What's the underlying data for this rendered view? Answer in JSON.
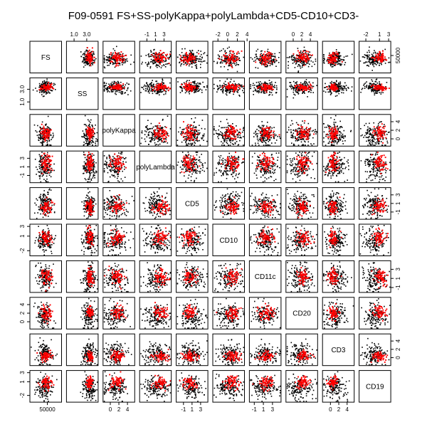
{
  "chart_data": {
    "type": "scatter",
    "title": "F09-0591 FS+SS-polyKappa+polyLambda+CD5-CD10+CD3-",
    "variables": [
      "FS",
      "SS",
      "polyKappa",
      "polyLambda",
      "CD5",
      "CD10",
      "CD11c",
      "CD20",
      "CD3",
      "CD19"
    ],
    "ranges": [
      [
        0,
        90000
      ],
      [
        0,
        4.6
      ],
      [
        -1.4,
        5.4
      ],
      [
        -2.4,
        4.4
      ],
      [
        -2.4,
        4.4
      ],
      [
        -2.8,
        3.2
      ],
      [
        -1.8,
        4.6
      ],
      [
        -1.4,
        5.4
      ],
      [
        -1.6,
        5.4
      ],
      [
        -3.2,
        3.2
      ]
    ],
    "ticks": {
      "top": {
        "1": [
          "1.0",
          "3.0"
        ],
        "3": [
          "-1",
          "1",
          "3"
        ],
        "5": [
          "-2",
          "0",
          "2",
          "4"
        ],
        "7": [
          "0",
          "2",
          "4"
        ],
        "9": [
          "-2",
          "1",
          "3"
        ]
      },
      "bottom": {
        "0": [
          "50000"
        ],
        "2": [
          "0",
          "2",
          "4"
        ],
        "4": [
          "-1",
          "1",
          "3"
        ],
        "6": [
          "-1",
          "1",
          "3"
        ],
        "8": [
          "0",
          "2",
          "4"
        ]
      },
      "left": {
        "1": [
          "1.0",
          "3.0"
        ],
        "3": [
          "-1",
          "1",
          "3"
        ],
        "5": [
          "-2",
          "1",
          "3"
        ],
        "7": [
          "0",
          "2",
          "4"
        ],
        "9": [
          "-2",
          "1",
          "3"
        ]
      },
      "right": {
        "0": [
          "50000"
        ],
        "2": [
          "0",
          "2",
          "4"
        ],
        "4": [
          "-1",
          "1",
          "3"
        ],
        "6": [
          "-1",
          "1",
          "3"
        ],
        "8": [
          "0",
          "2",
          "4"
        ]
      }
    },
    "tick_values": {
      "top": {
        "1": [
          1.0,
          3.0
        ],
        "3": [
          -1,
          1,
          3
        ],
        "5": [
          -2,
          0,
          2,
          4
        ],
        "7": [
          0,
          2,
          4
        ],
        "9": [
          -2,
          1,
          3
        ]
      },
      "bottom": {
        "0": [
          50000
        ],
        "2": [
          0,
          2,
          4
        ],
        "4": [
          -1,
          1,
          3
        ],
        "6": [
          -1,
          1,
          3
        ],
        "8": [
          0,
          2,
          4
        ]
      },
      "left": {
        "1": [
          1.0,
          3.0
        ],
        "3": [
          -1,
          1,
          3
        ],
        "5": [
          -2,
          1,
          3
        ],
        "7": [
          0,
          2,
          4
        ],
        "9": [
          -2,
          1,
          3
        ]
      },
      "right": {
        "0": [
          50000
        ],
        "2": [
          0,
          2,
          4
        ],
        "4": [
          -1,
          1,
          3
        ],
        "6": [
          -1,
          1,
          3
        ],
        "8": [
          0,
          2,
          4
        ]
      }
    },
    "series": [
      {
        "color": "#000000",
        "centers": [
          40000,
          3.3,
          1.0,
          1.2,
          0.8,
          0.2,
          1.2,
          1.5,
          1.0,
          -0.2
        ],
        "spread": [
          12000,
          0.5,
          1.4,
          1.5,
          1.4,
          1.3,
          1.4,
          1.5,
          1.3,
          1.2
        ]
      },
      {
        "color": "#ff0000",
        "centers": [
          45000,
          3.4,
          1.5,
          2.0,
          0.3,
          0.8,
          1.5,
          2.2,
          0.5,
          0.9
        ],
        "spread": [
          9000,
          0.25,
          0.8,
          0.9,
          0.8,
          0.8,
          0.9,
          0.8,
          0.6,
          0.7
        ]
      }
    ],
    "grid": false,
    "legend": "none"
  }
}
